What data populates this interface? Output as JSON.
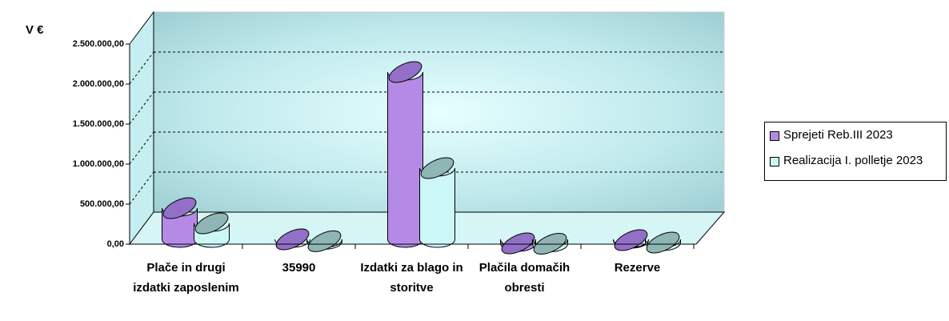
{
  "chart_data": {
    "type": "bar3d",
    "y_axis_label": "V €",
    "categories": [
      "Plače in drugi izdatki zaposlenim",
      "35990",
      "Izdatki za blago in storitve",
      "Plačila domačih obresti",
      "Rezerve"
    ],
    "series": [
      {
        "name": "Sprejeti Reb.III 2023",
        "color": "#b58ae6",
        "top_color": "#9370c8",
        "values": [
          450000,
          60000,
          2150000,
          10000,
          50000
        ]
      },
      {
        "name": "Realizacija I. polletje 2023",
        "color": "#ccf7f7",
        "top_color": "#8fb5b5",
        "values": [
          260000,
          35990,
          950000,
          5000,
          20000
        ]
      }
    ],
    "ylim": [
      0,
      2500000
    ],
    "yticks": [
      {
        "value": 0,
        "label": "0,00"
      },
      {
        "value": 500000,
        "label": "500.000,00"
      },
      {
        "value": 1000000,
        "label": "1.000.000,00"
      },
      {
        "value": 1500000,
        "label": "1.500.000,00"
      },
      {
        "value": 2000000,
        "label": "2.000.000,00"
      },
      {
        "value": 2500000,
        "label": "2.500.000,00"
      }
    ],
    "grid": true
  }
}
